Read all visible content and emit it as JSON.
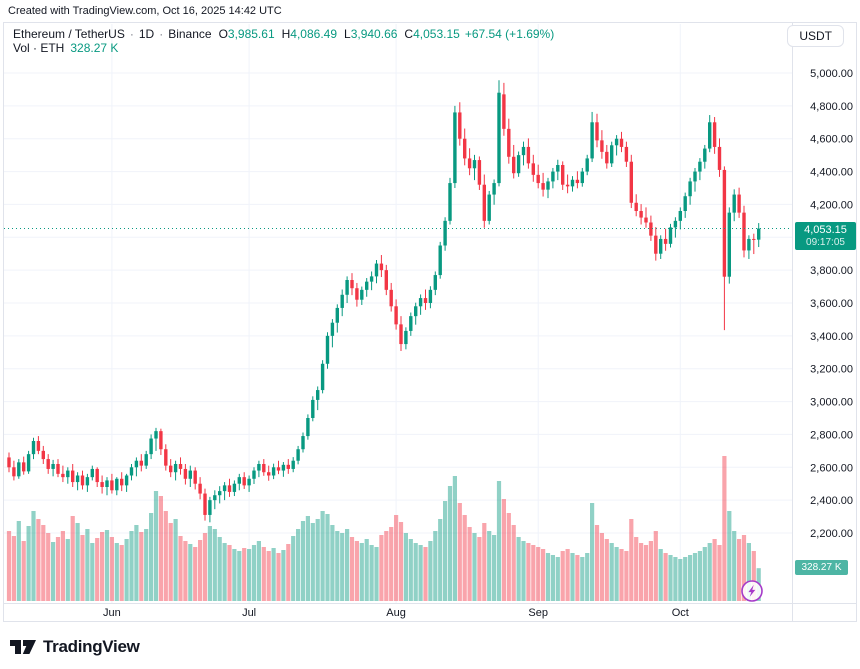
{
  "header": {
    "created_line": "Created with TradingView.com, Oct 16, 2025 14:42 UTC",
    "symbol_line": {
      "name": "Ethereum / TetherUS",
      "separator": "·",
      "interval": "1D",
      "exchange": "Binance"
    },
    "quote": {
      "o_label": "O",
      "o": "3,985.61",
      "h_label": "H",
      "h": "4,086.49",
      "l_label": "L",
      "l": "3,940.66",
      "c_label": "C",
      "c": "4,053.15",
      "change": "+67.54 (+1.69%)"
    },
    "volume_line": {
      "label": "Vol · ETH",
      "value": "328.27 K"
    },
    "currency_button": "USDT"
  },
  "chart_data": {
    "type": "candlestick",
    "symbol": "Ethereum / TetherUS",
    "exchange": "Binance",
    "interval": "1D",
    "quote_currency": "USDT",
    "last": {
      "open": 3985.61,
      "high": 4086.49,
      "low": 3940.66,
      "close": 4053.15,
      "change": "+67.54",
      "change_pct": "+1.69%",
      "volume": "328.27 K",
      "countdown": "09:17:05"
    },
    "price_line": {
      "price": 4053.15,
      "label": "4,053.15",
      "countdown": "09:17:05"
    },
    "volume_axis_label": "328.27 K",
    "y_axis": {
      "min": 2200,
      "max": 5000,
      "step": 200,
      "labels": [
        {
          "text": "5,000.00",
          "price": 5000
        },
        {
          "text": "4,800.00",
          "price": 4800
        },
        {
          "text": "4,600.00",
          "price": 4600
        },
        {
          "text": "4,400.00",
          "price": 4400
        },
        {
          "text": "4,200.00",
          "price": 4200
        },
        {
          "text": "3,800.00",
          "price": 3800
        },
        {
          "text": "3,600.00",
          "price": 3600
        },
        {
          "text": "3,400.00",
          "price": 3400
        },
        {
          "text": "3,200.00",
          "price": 3200
        },
        {
          "text": "3,000.00",
          "price": 3000
        },
        {
          "text": "2,800.00",
          "price": 2800
        },
        {
          "text": "2,600.00",
          "price": 2600
        },
        {
          "text": "2,400.00",
          "price": 2400
        },
        {
          "text": "2,200.00",
          "price": 2200
        }
      ]
    },
    "x_axis": {
      "months": [
        {
          "label": "Jun",
          "index": 21
        },
        {
          "label": "Jul",
          "index": 49
        },
        {
          "label": "Aug",
          "index": 79
        },
        {
          "label": "Sep",
          "index": 108
        },
        {
          "label": "Oct",
          "index": 137
        }
      ]
    },
    "columns": [
      "open",
      "high",
      "low",
      "close",
      "volume_k"
    ],
    "candles": [
      [
        2660,
        2690,
        2570,
        2600,
        700
      ],
      [
        2600,
        2640,
        2520,
        2545,
        650
      ],
      [
        2545,
        2650,
        2530,
        2630,
        800
      ],
      [
        2630,
        2665,
        2555,
        2575,
        600
      ],
      [
        2575,
        2700,
        2560,
        2680,
        750
      ],
      [
        2680,
        2780,
        2650,
        2760,
        900
      ],
      [
        2760,
        2790,
        2680,
        2700,
        820
      ],
      [
        2700,
        2730,
        2620,
        2650,
        760
      ],
      [
        2650,
        2680,
        2560,
        2590,
        680
      ],
      [
        2590,
        2645,
        2545,
        2620,
        590
      ],
      [
        2620,
        2650,
        2540,
        2560,
        640
      ],
      [
        2560,
        2610,
        2510,
        2540,
        700
      ],
      [
        2540,
        2600,
        2500,
        2580,
        620
      ],
      [
        2580,
        2620,
        2480,
        2510,
        850
      ],
      [
        2510,
        2570,
        2460,
        2550,
        780
      ],
      [
        2550,
        2580,
        2465,
        2490,
        660
      ],
      [
        2490,
        2560,
        2450,
        2540,
        720
      ],
      [
        2540,
        2610,
        2520,
        2590,
        580
      ],
      [
        2590,
        2600,
        2480,
        2510,
        630
      ],
      [
        2510,
        2550,
        2440,
        2480,
        690
      ],
      [
        2480,
        2540,
        2430,
        2520,
        710
      ],
      [
        2520,
        2560,
        2440,
        2460,
        640
      ],
      [
        2460,
        2540,
        2430,
        2530,
        580
      ],
      [
        2530,
        2570,
        2455,
        2490,
        560
      ],
      [
        2490,
        2560,
        2450,
        2550,
        620
      ],
      [
        2550,
        2620,
        2520,
        2600,
        700
      ],
      [
        2600,
        2660,
        2545,
        2640,
        760
      ],
      [
        2640,
        2680,
        2575,
        2610,
        690
      ],
      [
        2610,
        2700,
        2590,
        2680,
        720
      ],
      [
        2680,
        2800,
        2650,
        2775,
        880
      ],
      [
        2775,
        2840,
        2700,
        2820,
        1100
      ],
      [
        2820,
        2835,
        2675,
        2710,
        1050
      ],
      [
        2710,
        2740,
        2580,
        2610,
        900
      ],
      [
        2610,
        2650,
        2540,
        2570,
        780
      ],
      [
        2570,
        2640,
        2520,
        2620,
        820
      ],
      [
        2620,
        2660,
        2555,
        2590,
        650
      ],
      [
        2590,
        2620,
        2495,
        2530,
        600
      ],
      [
        2530,
        2610,
        2480,
        2580,
        570
      ],
      [
        2580,
        2600,
        2465,
        2500,
        540
      ],
      [
        2500,
        2540,
        2405,
        2440,
        610
      ],
      [
        2440,
        2470,
        2275,
        2310,
        680
      ],
      [
        2310,
        2420,
        2265,
        2400,
        750
      ],
      [
        2400,
        2460,
        2345,
        2430,
        720
      ],
      [
        2430,
        2485,
        2380,
        2455,
        640
      ],
      [
        2455,
        2510,
        2400,
        2490,
        580
      ],
      [
        2490,
        2530,
        2420,
        2450,
        560
      ],
      [
        2450,
        2520,
        2425,
        2500,
        520
      ],
      [
        2500,
        2560,
        2460,
        2540,
        500
      ],
      [
        2540,
        2570,
        2468,
        2490,
        530
      ],
      [
        2490,
        2550,
        2450,
        2530,
        520
      ],
      [
        2530,
        2600,
        2498,
        2580,
        560
      ],
      [
        2580,
        2640,
        2540,
        2620,
        600
      ],
      [
        2620,
        2650,
        2548,
        2570,
        540
      ],
      [
        2570,
        2610,
        2518,
        2550,
        500
      ],
      [
        2550,
        2622,
        2528,
        2600,
        530
      ],
      [
        2600,
        2640,
        2558,
        2580,
        480
      ],
      [
        2580,
        2632,
        2542,
        2615,
        510
      ],
      [
        2615,
        2650,
        2560,
        2590,
        570
      ],
      [
        2590,
        2662,
        2570,
        2640,
        650
      ],
      [
        2640,
        2730,
        2618,
        2710,
        720
      ],
      [
        2710,
        2812,
        2690,
        2790,
        800
      ],
      [
        2790,
        2922,
        2768,
        2900,
        850
      ],
      [
        2900,
        3032,
        2880,
        3010,
        780
      ],
      [
        3010,
        3092,
        2948,
        3070,
        820
      ],
      [
        3070,
        3252,
        3050,
        3230,
        900
      ],
      [
        3230,
        3422,
        3200,
        3400,
        870
      ],
      [
        3400,
        3502,
        3330,
        3480,
        760
      ],
      [
        3480,
        3592,
        3420,
        3570,
        700
      ],
      [
        3570,
        3682,
        3520,
        3650,
        680
      ],
      [
        3650,
        3762,
        3600,
        3740,
        720
      ],
      [
        3740,
        3782,
        3648,
        3690,
        640
      ],
      [
        3690,
        3722,
        3578,
        3620,
        600
      ],
      [
        3620,
        3700,
        3588,
        3680,
        580
      ],
      [
        3680,
        3752,
        3638,
        3730,
        620
      ],
      [
        3730,
        3792,
        3678,
        3762,
        560
      ],
      [
        3762,
        3862,
        3720,
        3840,
        540
      ],
      [
        3840,
        3892,
        3758,
        3800,
        660
      ],
      [
        3800,
        3832,
        3648,
        3680,
        700
      ],
      [
        3680,
        3722,
        3548,
        3580,
        740
      ],
      [
        3580,
        3622,
        3438,
        3470,
        860
      ],
      [
        3470,
        3520,
        3308,
        3350,
        790
      ],
      [
        3350,
        3452,
        3318,
        3430,
        680
      ],
      [
        3430,
        3542,
        3400,
        3520,
        620
      ],
      [
        3520,
        3602,
        3468,
        3580,
        580
      ],
      [
        3580,
        3652,
        3528,
        3630,
        560
      ],
      [
        3630,
        3682,
        3558,
        3600,
        540
      ],
      [
        3600,
        3702,
        3568,
        3680,
        600
      ],
      [
        3680,
        3792,
        3648,
        3770,
        700
      ],
      [
        3770,
        3972,
        3748,
        3950,
        820
      ],
      [
        3950,
        4122,
        3918,
        4100,
        1000
      ],
      [
        4100,
        4362,
        4078,
        4330,
        1150
      ],
      [
        4330,
        4800,
        4300,
        4760,
        1250
      ],
      [
        4760,
        4822,
        4558,
        4600,
        980
      ],
      [
        4600,
        4662,
        4438,
        4480,
        860
      ],
      [
        4480,
        4542,
        4378,
        4420,
        740
      ],
      [
        4420,
        4502,
        4348,
        4470,
        680
      ],
      [
        4470,
        4492,
        4288,
        4320,
        640
      ],
      [
        4320,
        4382,
        4058,
        4100,
        780
      ],
      [
        4100,
        4282,
        4078,
        4260,
        700
      ],
      [
        4260,
        4352,
        4198,
        4330,
        660
      ],
      [
        4330,
        4956,
        4310,
        4880,
        1200
      ],
      [
        4870,
        4940,
        4618,
        4660,
        1020
      ],
      [
        4660,
        4722,
        4448,
        4490,
        880
      ],
      [
        4490,
        4562,
        4358,
        4390,
        760
      ],
      [
        4390,
        4522,
        4368,
        4500,
        640
      ],
      [
        4500,
        4582,
        4438,
        4550,
        600
      ],
      [
        4550,
        4602,
        4418,
        4450,
        580
      ],
      [
        4450,
        4502,
        4338,
        4380,
        560
      ],
      [
        4380,
        4442,
        4298,
        4330,
        540
      ],
      [
        4330,
        4392,
        4248,
        4290,
        520
      ],
      [
        4290,
        4362,
        4238,
        4340,
        480
      ],
      [
        4340,
        4422,
        4298,
        4400,
        460
      ],
      [
        4400,
        4472,
        4348,
        4440,
        440
      ],
      [
        4440,
        4462,
        4288,
        4320,
        500
      ],
      [
        4320,
        4382,
        4268,
        4310,
        520
      ],
      [
        4310,
        4372,
        4278,
        4350,
        480
      ],
      [
        4350,
        4402,
        4298,
        4330,
        460
      ],
      [
        4330,
        4422,
        4308,
        4400,
        440
      ],
      [
        4400,
        4502,
        4378,
        4480,
        480
      ],
      [
        4480,
        4763,
        4458,
        4700,
        980
      ],
      [
        4700,
        4752,
        4548,
        4590,
        760
      ],
      [
        4590,
        4652,
        4478,
        4520,
        680
      ],
      [
        4520,
        4562,
        4418,
        4450,
        620
      ],
      [
        4450,
        4582,
        4428,
        4560,
        580
      ],
      [
        4560,
        4622,
        4498,
        4600,
        540
      ],
      [
        4600,
        4642,
        4518,
        4550,
        520
      ],
      [
        4550,
        4582,
        4428,
        4460,
        500
      ],
      [
        4460,
        4502,
        4178,
        4210,
        820
      ],
      [
        4210,
        4262,
        4128,
        4160,
        640
      ],
      [
        4160,
        4202,
        4078,
        4120,
        580
      ],
      [
        4120,
        4182,
        4058,
        4090,
        560
      ],
      [
        4090,
        4132,
        3978,
        4010,
        600
      ],
      [
        4010,
        4062,
        3858,
        3900,
        700
      ],
      [
        3900,
        4012,
        3868,
        3990,
        520
      ],
      [
        3990,
        4052,
        3918,
        3960,
        480
      ],
      [
        3960,
        4082,
        3938,
        4060,
        460
      ],
      [
        4060,
        4122,
        3998,
        4100,
        440
      ],
      [
        4100,
        4182,
        4048,
        4160,
        420
      ],
      [
        4160,
        4272,
        4118,
        4250,
        440
      ],
      [
        4250,
        4362,
        4198,
        4340,
        460
      ],
      [
        4340,
        4422,
        4278,
        4400,
        480
      ],
      [
        4400,
        4482,
        4348,
        4460,
        500
      ],
      [
        4460,
        4562,
        4418,
        4540,
        540
      ],
      [
        4540,
        4744,
        4518,
        4700,
        580
      ],
      [
        4700,
        4732,
        4508,
        4550,
        620
      ],
      [
        4550,
        4602,
        4368,
        4410,
        560
      ],
      [
        4410,
        4432,
        3435,
        3760,
        1450
      ],
      [
        3760,
        4182,
        3718,
        4150,
        900
      ],
      [
        4150,
        4292,
        4098,
        4260,
        700
      ],
      [
        4260,
        4302,
        4118,
        4150,
        620
      ],
      [
        4150,
        4192,
        3878,
        3920,
        660
      ],
      [
        3920,
        4012,
        3868,
        3990,
        580
      ],
      [
        3990,
        4022,
        3898,
        3985,
        500
      ],
      [
        3985.61,
        4086.49,
        3940.66,
        4053.15,
        328.27
      ]
    ]
  },
  "branding": {
    "logo_text": "TradingView"
  },
  "icons": {
    "lightning": "lightning-icon"
  },
  "colors": {
    "up": "#089981",
    "down": "#F23645",
    "vol_up": "rgba(8,153,129,0.45)",
    "vol_down": "rgba(242,54,69,0.45)",
    "grid": "#F0F3FA",
    "border": "#E0E3EB",
    "axis_text": "#131722",
    "muted_text": "#787B86",
    "badge_bg": "#089981",
    "badge_text": "#FFFFFF",
    "lightning": "#A63AC9"
  }
}
